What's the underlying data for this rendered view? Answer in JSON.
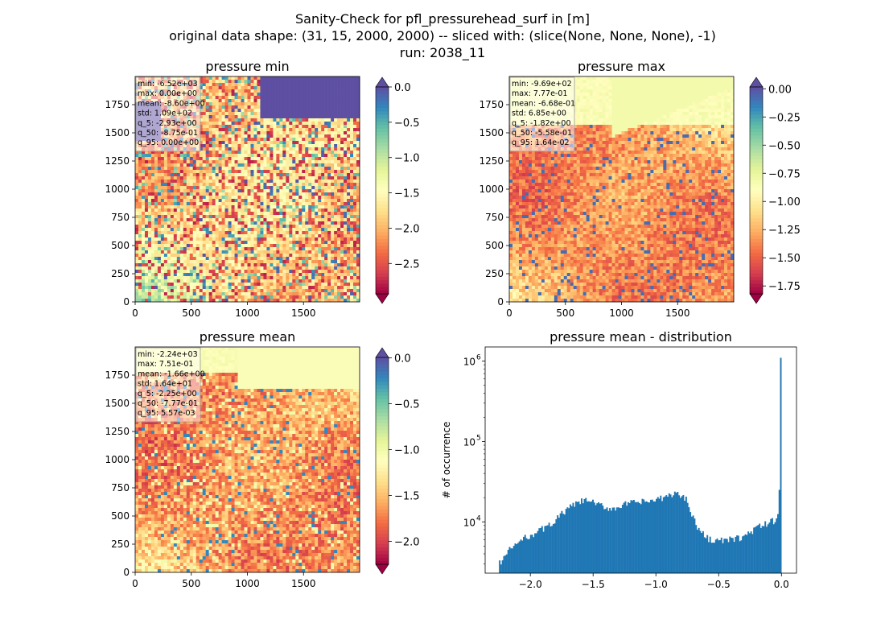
{
  "figure": {
    "title_lines": [
      "Sanity-Check for pfl_pressurehead_surf in [m]",
      "original data shape: (31, 15, 2000, 2000) -- sliced with: (slice(None, None, None), -1)",
      "run: 2038_11"
    ]
  },
  "chart_data": [
    {
      "type": "heatmap",
      "title": "pressure min",
      "xlabel": "",
      "ylabel": "",
      "xlim": [
        0,
        2000
      ],
      "ylim": [
        0,
        2000
      ],
      "x_ticks": [
        "0",
        "500",
        "1000",
        "1500"
      ],
      "y_ticks": [
        "0",
        "250",
        "500",
        "750",
        "1000",
        "1250",
        "1500",
        "1750"
      ],
      "colormap": "Spectral",
      "colorbar": {
        "range": [
          -2.93,
          0.0
        ],
        "ticks": [
          "0.0",
          "−0.5",
          "−1.0",
          "−1.5",
          "−2.0",
          "−2.5"
        ],
        "extend": "both",
        "under_color": "#9e0142",
        "over_color": "#5e4fa2"
      },
      "stats": [
        "min: -6.52e+03",
        "max: 0.00e+00",
        "mean: -8.60e+00",
        "std: 1.09e+02",
        "q_5: -2.93e+00",
        "q_50: -8.75e-01",
        "q_95: 0.00e+00"
      ]
    },
    {
      "type": "heatmap",
      "title": "pressure max",
      "xlabel": "",
      "ylabel": "",
      "xlim": [
        0,
        2000
      ],
      "ylim": [
        0,
        2000
      ],
      "x_ticks": [
        "0",
        "500",
        "1000",
        "1500"
      ],
      "y_ticks": [
        "0",
        "250",
        "500",
        "750",
        "1000",
        "1250",
        "1500",
        "1750"
      ],
      "colormap": "Spectral",
      "colorbar": {
        "range": [
          -1.82,
          0.0164
        ],
        "ticks": [
          "0.00",
          "−0.25",
          "−0.50",
          "−0.75",
          "−1.00",
          "−1.25",
          "−1.50",
          "−1.75"
        ],
        "extend": "both",
        "under_color": "#9e0142",
        "over_color": "#5e4fa2"
      },
      "stats": [
        "min: -9.69e+02",
        "max: 7.77e-01",
        "mean: -6.68e-01",
        "std: 6.85e+00",
        "q_5: -1.82e+00",
        "q_50: -5.58e-01",
        "q_95: 1.64e-02"
      ]
    },
    {
      "type": "heatmap",
      "title": "pressure mean",
      "xlabel": "",
      "ylabel": "",
      "xlim": [
        0,
        2000
      ],
      "ylim": [
        0,
        2000
      ],
      "x_ticks": [
        "0",
        "500",
        "1000",
        "1500"
      ],
      "y_ticks": [
        "0",
        "250",
        "500",
        "750",
        "1000",
        "1250",
        "1500",
        "1750"
      ],
      "colormap": "Spectral",
      "colorbar": {
        "range": [
          -2.25,
          0.0056
        ],
        "ticks": [
          "0.0",
          "−0.5",
          "−1.0",
          "−1.5",
          "−2.0"
        ],
        "extend": "both",
        "under_color": "#9e0142",
        "over_color": "#5e4fa2"
      },
      "stats": [
        "min: -2.24e+03",
        "max: 7.51e-01",
        "mean: -1.66e+00",
        "std: 1.64e+01",
        "q_5: -2.25e+00",
        "q_50: -7.77e-01",
        "q_95: 5.57e-03"
      ]
    },
    {
      "type": "bar",
      "title": "pressure mean - distribution",
      "xlabel": "",
      "ylabel": "# of occurrence",
      "yscale": "log",
      "xlim": [
        -2.36,
        0.12
      ],
      "ylim": [
        2300,
        1500000
      ],
      "x_ticks": [
        "−2.0",
        "−1.5",
        "−1.0",
        "−0.5",
        "0.0"
      ],
      "y_ticks": [
        "10",
        "10",
        "10"
      ],
      "y_tick_exponents": [
        "4",
        "5",
        "6"
      ],
      "bar_color": "#1f77b4",
      "bin_range": [
        -2.25,
        0.0
      ],
      "histogram_profile": [
        [
          -2.25,
          3000
        ],
        [
          -2.15,
          4800
        ],
        [
          -2.05,
          6200
        ],
        [
          -1.95,
          7500
        ],
        [
          -1.85,
          9000
        ],
        [
          -1.75,
          12500
        ],
        [
          -1.65,
          16500
        ],
        [
          -1.55,
          18800
        ],
        [
          -1.45,
          16000
        ],
        [
          -1.35,
          14500
        ],
        [
          -1.25,
          16500
        ],
        [
          -1.15,
          17500
        ],
        [
          -1.05,
          18000
        ],
        [
          -0.95,
          19500
        ],
        [
          -0.85,
          23000
        ],
        [
          -0.75,
          19000
        ],
        [
          -0.7,
          11000
        ],
        [
          -0.65,
          7500
        ],
        [
          -0.58,
          6200
        ],
        [
          -0.5,
          5800
        ],
        [
          -0.4,
          6000
        ],
        [
          -0.3,
          6500
        ],
        [
          -0.22,
          8000
        ],
        [
          -0.12,
          9500
        ],
        [
          -0.05,
          10500
        ],
        [
          -0.015,
          14000
        ],
        [
          -0.005,
          25000
        ],
        [
          0.0,
          1100000
        ]
      ]
    }
  ]
}
